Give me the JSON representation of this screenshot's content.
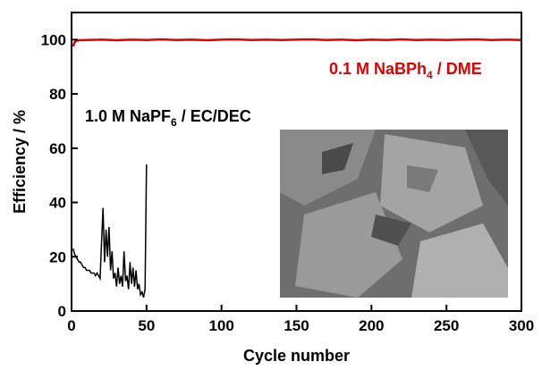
{
  "chart_data": {
    "type": "line",
    "xlabel": "Cycle number",
    "ylabel": "Efficiency / %",
    "xlim": [
      0,
      300
    ],
    "xticks": [
      0,
      50,
      100,
      150,
      200,
      250,
      300
    ],
    "ylim": [
      0,
      110
    ],
    "yticks": [
      0,
      20,
      40,
      60,
      80,
      100
    ],
    "series": [
      {
        "name": [
          "0.1 M NaBPh",
          "4",
          " / DME"
        ],
        "color": "#e00000",
        "x": [
          1,
          2,
          3,
          5,
          10,
          20,
          30,
          40,
          50,
          60,
          70,
          80,
          90,
          100,
          110,
          120,
          130,
          140,
          150,
          160,
          170,
          180,
          190,
          200,
          210,
          220,
          230,
          240,
          250,
          260,
          270,
          280,
          290,
          300
        ],
        "values": [
          97.5,
          99,
          99.6,
          99.8,
          99.9,
          100,
          99.8,
          100,
          99.9,
          100.1,
          99.9,
          100,
          99.8,
          100,
          100.1,
          99.9,
          100,
          99.9,
          100,
          100.1,
          99.9,
          100,
          99.8,
          100,
          99.9,
          100.1,
          99.9,
          100,
          99.9,
          100,
          100.1,
          99.9,
          100,
          99.9
        ]
      },
      {
        "name": [
          "1.0 M NaPF",
          "6",
          " / EC/DEC"
        ],
        "color": "#000000",
        "x": [
          1,
          2,
          3,
          4,
          5,
          6,
          7,
          8,
          9,
          10,
          11,
          12,
          13,
          14,
          15,
          16,
          17,
          18,
          19,
          20,
          21,
          22,
          23,
          24,
          25,
          26,
          27,
          28,
          29,
          30,
          31,
          32,
          33,
          34,
          35,
          36,
          37,
          38,
          39,
          40,
          41,
          42,
          43,
          44,
          45,
          46,
          47,
          48,
          49,
          50
        ],
        "values": [
          23,
          21,
          20,
          19,
          18,
          18,
          17,
          16,
          16,
          15,
          15,
          15,
          14,
          14,
          14,
          13,
          14,
          13,
          12,
          25,
          38,
          18,
          30,
          20,
          31,
          15,
          22,
          12,
          14,
          9,
          16,
          10,
          13,
          9,
          22,
          11,
          13,
          8,
          18,
          10,
          16,
          9,
          15,
          8,
          10,
          6,
          7,
          5,
          8,
          54
        ]
      }
    ]
  }
}
